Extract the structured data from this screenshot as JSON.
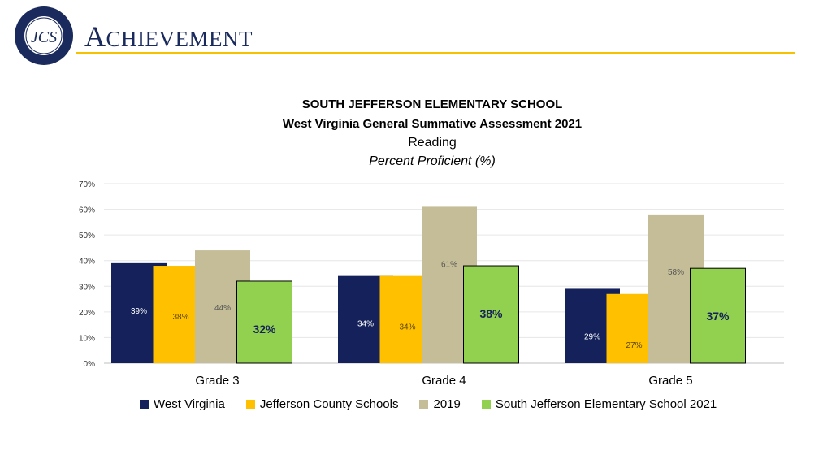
{
  "header": {
    "title_first": "A",
    "title_rest": "CHIEVEMENT",
    "logo_text": "JEFFERSON COUNTY SCHOOLS",
    "logo_monogram": "JCS"
  },
  "colors": {
    "west_virginia": "#14215a",
    "jefferson": "#ffc000",
    "y2019": "#c4bd97",
    "south_jefferson": "#92d050",
    "rule": "#f5c100"
  },
  "chart_data": {
    "type": "bar",
    "title": "SOUTH JEFFERSON ELEMENTARY SCHOOL",
    "subtitle": "West Virginia General Summative Assessment 2021",
    "subject": "Reading",
    "ylabel": "Percent Proficient (%)",
    "categories": [
      "Grade 3",
      "Grade 4",
      "Grade 5"
    ],
    "ylim": [
      0,
      70
    ],
    "yticks": [
      0,
      10,
      20,
      30,
      40,
      50,
      60,
      70
    ],
    "ytick_labels": [
      "0%",
      "10%",
      "20%",
      "30%",
      "40%",
      "50%",
      "60%",
      "70%"
    ],
    "legend_position": "bottom",
    "series": [
      {
        "name": "West Virginia",
        "values": [
          39,
          34,
          29
        ],
        "labels": [
          "39%",
          "34%",
          "29%"
        ]
      },
      {
        "name": "Jefferson County Schools",
        "values": [
          38,
          34,
          27
        ],
        "labels": [
          "38%",
          "34%",
          "27%"
        ]
      },
      {
        "name": "2019",
        "values": [
          44,
          61,
          58
        ],
        "labels": [
          "44%",
          "61%",
          "58%"
        ]
      },
      {
        "name": "South Jefferson Elementary School 2021",
        "values": [
          32,
          38,
          37
        ],
        "labels": [
          "32%",
          "38%",
          "37%"
        ]
      }
    ]
  }
}
